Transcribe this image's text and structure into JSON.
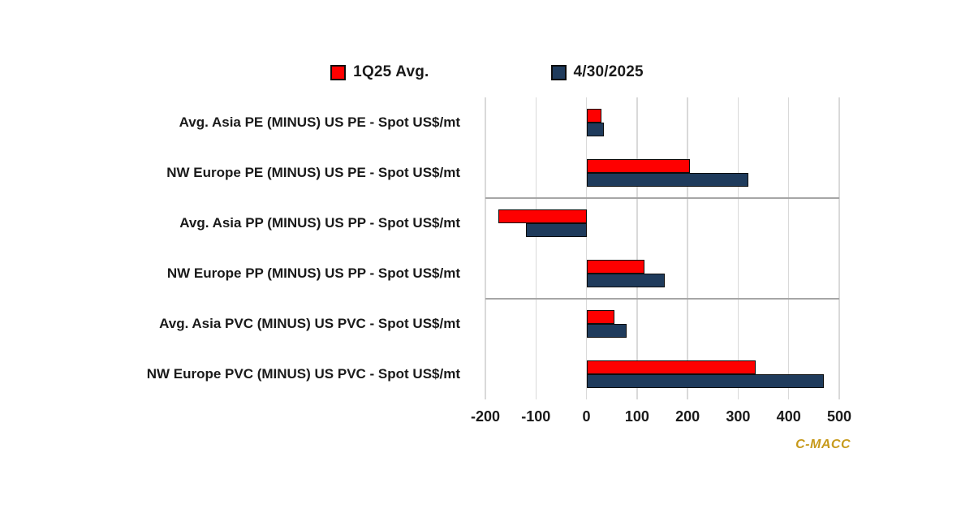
{
  "legend": [
    {
      "label": "1Q25 Avg.",
      "color": "#fe0000"
    },
    {
      "label": "4/30/2025",
      "color": "#1f3b5c"
    }
  ],
  "watermark": {
    "text": "C-MACC",
    "color": "#c79a1b"
  },
  "chart_data": {
    "type": "bar",
    "orientation": "horizontal",
    "title": "",
    "xlabel": "",
    "ylabel": "",
    "categories": [
      "Avg. Asia PE (MINUS) US PE - Spot US$/mt",
      "NW Europe PE (MINUS) US PE - Spot US$/mt",
      "Avg. Asia PP (MINUS) US PP - Spot US$/mt",
      "NW Europe PP (MINUS) US PP - Spot US$/mt",
      "Avg. Asia PVC (MINUS) US PVC - Spot US$/mt",
      "NW Europe PVC (MINUS) US PVC - Spot US$/mt"
    ],
    "series": [
      {
        "name": "1Q25 Avg.",
        "color": "#fe0000",
        "values": [
          30,
          205,
          -175,
          115,
          55,
          335
        ]
      },
      {
        "name": "4/30/2025",
        "color": "#1f3b5c",
        "values": [
          35,
          320,
          -120,
          155,
          80,
          470
        ]
      }
    ],
    "xlim": [
      -200,
      500
    ],
    "xticks": [
      -200,
      -100,
      0,
      100,
      200,
      300,
      400,
      500
    ],
    "grid": "vertical-only",
    "gridline_color": "#d9d9d9",
    "group_separators_after": [
      1,
      3
    ],
    "legend_position": "top-center"
  }
}
